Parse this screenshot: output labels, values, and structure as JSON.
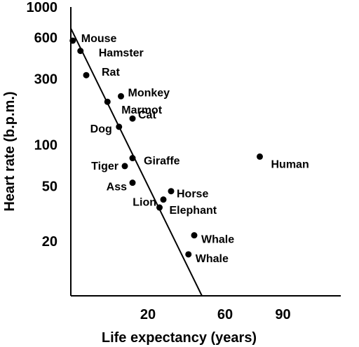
{
  "chart_data": {
    "type": "scatter",
    "title": "",
    "xlabel": "Life expectancy (years)",
    "ylabel": "Heart rate (b.p.m.)",
    "x_scale": "linear",
    "y_scale": "log",
    "xlim": [
      -20,
      120
    ],
    "ylim": [
      8,
      1000
    ],
    "x_ticks": [
      20,
      60,
      90
    ],
    "y_ticks": [
      1000,
      600,
      300,
      100,
      50,
      20
    ],
    "grid": false,
    "legend": "none",
    "points": [
      {
        "label": "Mouse",
        "x": -19,
        "y": 570
      },
      {
        "label": "Hamster",
        "x": -15,
        "y": 480
      },
      {
        "label": "Rat",
        "x": -12,
        "y": 320
      },
      {
        "label": "Monkey",
        "x": 6,
        "y": 225
      },
      {
        "label": "Marmot",
        "x": -1,
        "y": 205
      },
      {
        "label": "Cat",
        "x": 12,
        "y": 155
      },
      {
        "label": "Dog",
        "x": 5,
        "y": 135
      },
      {
        "label": "Giraffe",
        "x": 12,
        "y": 80
      },
      {
        "label": "Tiger",
        "x": 8,
        "y": 70
      },
      {
        "label": "Ass",
        "x": 12,
        "y": 53
      },
      {
        "label": "Horse",
        "x": 32,
        "y": 46
      },
      {
        "label": "Lion",
        "x": 28,
        "y": 40
      },
      {
        "label": "Elephant",
        "x": 26,
        "y": 35
      },
      {
        "label": "Whale",
        "x": 44,
        "y": 22
      },
      {
        "label": "Whale",
        "x": 41,
        "y": 16
      },
      {
        "label": "Human",
        "x": 78,
        "y": 82
      }
    ],
    "trend_line": {
      "x": [
        -20,
        48
      ],
      "y": [
        700,
        8
      ]
    }
  }
}
